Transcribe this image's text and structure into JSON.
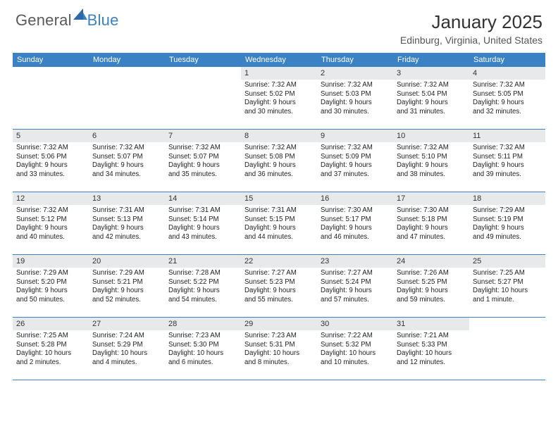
{
  "brand": {
    "part1": "General",
    "part2": "Blue"
  },
  "title": "January 2025",
  "subtitle": "Edinburg, Virginia, United States",
  "colors": {
    "header_bg": "#3b82c4",
    "daynum_bg": "#e8e9ea",
    "border": "#3b82c4",
    "brand_gray": "#5a5a5a",
    "brand_blue": "#3b82c4"
  },
  "dayHeaders": [
    "Sunday",
    "Monday",
    "Tuesday",
    "Wednesday",
    "Thursday",
    "Friday",
    "Saturday"
  ],
  "weeks": [
    [
      null,
      null,
      null,
      {
        "day": "1",
        "sunrise": "Sunrise: 7:32 AM",
        "sunset": "Sunset: 5:02 PM",
        "d1": "Daylight: 9 hours",
        "d2": "and 30 minutes."
      },
      {
        "day": "2",
        "sunrise": "Sunrise: 7:32 AM",
        "sunset": "Sunset: 5:03 PM",
        "d1": "Daylight: 9 hours",
        "d2": "and 30 minutes."
      },
      {
        "day": "3",
        "sunrise": "Sunrise: 7:32 AM",
        "sunset": "Sunset: 5:04 PM",
        "d1": "Daylight: 9 hours",
        "d2": "and 31 minutes."
      },
      {
        "day": "4",
        "sunrise": "Sunrise: 7:32 AM",
        "sunset": "Sunset: 5:05 PM",
        "d1": "Daylight: 9 hours",
        "d2": "and 32 minutes."
      }
    ],
    [
      {
        "day": "5",
        "sunrise": "Sunrise: 7:32 AM",
        "sunset": "Sunset: 5:06 PM",
        "d1": "Daylight: 9 hours",
        "d2": "and 33 minutes."
      },
      {
        "day": "6",
        "sunrise": "Sunrise: 7:32 AM",
        "sunset": "Sunset: 5:07 PM",
        "d1": "Daylight: 9 hours",
        "d2": "and 34 minutes."
      },
      {
        "day": "7",
        "sunrise": "Sunrise: 7:32 AM",
        "sunset": "Sunset: 5:07 PM",
        "d1": "Daylight: 9 hours",
        "d2": "and 35 minutes."
      },
      {
        "day": "8",
        "sunrise": "Sunrise: 7:32 AM",
        "sunset": "Sunset: 5:08 PM",
        "d1": "Daylight: 9 hours",
        "d2": "and 36 minutes."
      },
      {
        "day": "9",
        "sunrise": "Sunrise: 7:32 AM",
        "sunset": "Sunset: 5:09 PM",
        "d1": "Daylight: 9 hours",
        "d2": "and 37 minutes."
      },
      {
        "day": "10",
        "sunrise": "Sunrise: 7:32 AM",
        "sunset": "Sunset: 5:10 PM",
        "d1": "Daylight: 9 hours",
        "d2": "and 38 minutes."
      },
      {
        "day": "11",
        "sunrise": "Sunrise: 7:32 AM",
        "sunset": "Sunset: 5:11 PM",
        "d1": "Daylight: 9 hours",
        "d2": "and 39 minutes."
      }
    ],
    [
      {
        "day": "12",
        "sunrise": "Sunrise: 7:32 AM",
        "sunset": "Sunset: 5:12 PM",
        "d1": "Daylight: 9 hours",
        "d2": "and 40 minutes."
      },
      {
        "day": "13",
        "sunrise": "Sunrise: 7:31 AM",
        "sunset": "Sunset: 5:13 PM",
        "d1": "Daylight: 9 hours",
        "d2": "and 42 minutes."
      },
      {
        "day": "14",
        "sunrise": "Sunrise: 7:31 AM",
        "sunset": "Sunset: 5:14 PM",
        "d1": "Daylight: 9 hours",
        "d2": "and 43 minutes."
      },
      {
        "day": "15",
        "sunrise": "Sunrise: 7:31 AM",
        "sunset": "Sunset: 5:15 PM",
        "d1": "Daylight: 9 hours",
        "d2": "and 44 minutes."
      },
      {
        "day": "16",
        "sunrise": "Sunrise: 7:30 AM",
        "sunset": "Sunset: 5:17 PM",
        "d1": "Daylight: 9 hours",
        "d2": "and 46 minutes."
      },
      {
        "day": "17",
        "sunrise": "Sunrise: 7:30 AM",
        "sunset": "Sunset: 5:18 PM",
        "d1": "Daylight: 9 hours",
        "d2": "and 47 minutes."
      },
      {
        "day": "18",
        "sunrise": "Sunrise: 7:29 AM",
        "sunset": "Sunset: 5:19 PM",
        "d1": "Daylight: 9 hours",
        "d2": "and 49 minutes."
      }
    ],
    [
      {
        "day": "19",
        "sunrise": "Sunrise: 7:29 AM",
        "sunset": "Sunset: 5:20 PM",
        "d1": "Daylight: 9 hours",
        "d2": "and 50 minutes."
      },
      {
        "day": "20",
        "sunrise": "Sunrise: 7:29 AM",
        "sunset": "Sunset: 5:21 PM",
        "d1": "Daylight: 9 hours",
        "d2": "and 52 minutes."
      },
      {
        "day": "21",
        "sunrise": "Sunrise: 7:28 AM",
        "sunset": "Sunset: 5:22 PM",
        "d1": "Daylight: 9 hours",
        "d2": "and 54 minutes."
      },
      {
        "day": "22",
        "sunrise": "Sunrise: 7:27 AM",
        "sunset": "Sunset: 5:23 PM",
        "d1": "Daylight: 9 hours",
        "d2": "and 55 minutes."
      },
      {
        "day": "23",
        "sunrise": "Sunrise: 7:27 AM",
        "sunset": "Sunset: 5:24 PM",
        "d1": "Daylight: 9 hours",
        "d2": "and 57 minutes."
      },
      {
        "day": "24",
        "sunrise": "Sunrise: 7:26 AM",
        "sunset": "Sunset: 5:25 PM",
        "d1": "Daylight: 9 hours",
        "d2": "and 59 minutes."
      },
      {
        "day": "25",
        "sunrise": "Sunrise: 7:25 AM",
        "sunset": "Sunset: 5:27 PM",
        "d1": "Daylight: 10 hours",
        "d2": "and 1 minute."
      }
    ],
    [
      {
        "day": "26",
        "sunrise": "Sunrise: 7:25 AM",
        "sunset": "Sunset: 5:28 PM",
        "d1": "Daylight: 10 hours",
        "d2": "and 2 minutes."
      },
      {
        "day": "27",
        "sunrise": "Sunrise: 7:24 AM",
        "sunset": "Sunset: 5:29 PM",
        "d1": "Daylight: 10 hours",
        "d2": "and 4 minutes."
      },
      {
        "day": "28",
        "sunrise": "Sunrise: 7:23 AM",
        "sunset": "Sunset: 5:30 PM",
        "d1": "Daylight: 10 hours",
        "d2": "and 6 minutes."
      },
      {
        "day": "29",
        "sunrise": "Sunrise: 7:23 AM",
        "sunset": "Sunset: 5:31 PM",
        "d1": "Daylight: 10 hours",
        "d2": "and 8 minutes."
      },
      {
        "day": "30",
        "sunrise": "Sunrise: 7:22 AM",
        "sunset": "Sunset: 5:32 PM",
        "d1": "Daylight: 10 hours",
        "d2": "and 10 minutes."
      },
      {
        "day": "31",
        "sunrise": "Sunrise: 7:21 AM",
        "sunset": "Sunset: 5:33 PM",
        "d1": "Daylight: 10 hours",
        "d2": "and 12 minutes."
      },
      null
    ]
  ]
}
